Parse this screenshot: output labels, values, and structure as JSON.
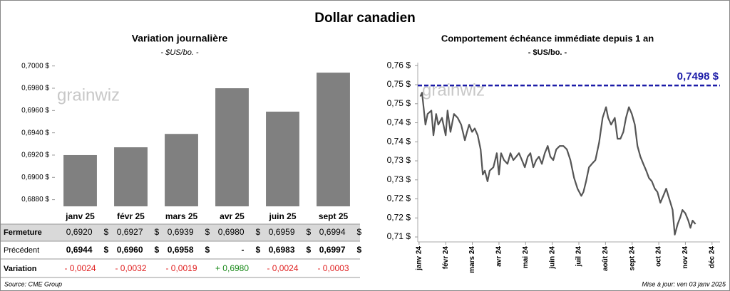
{
  "title": "Dollar canadien",
  "watermark": "grainwiz",
  "source": "Source: CME Group",
  "updated": "Mise à jour: ven 03 janv 2025",
  "chart_data": [
    {
      "type": "bar",
      "title": "Variation  journalière",
      "subtitle": "- $US/bo. -",
      "categories": [
        "janv 25",
        "févr 25",
        "mars 25",
        "avr 25",
        "juin 25",
        "sept 25"
      ],
      "values": [
        0.692,
        0.6927,
        0.6939,
        0.698,
        0.6959,
        0.6994
      ],
      "color": "#808080",
      "ylim": [
        0.6874,
        0.7003
      ],
      "yticks": [
        {
          "value": 0.688,
          "label": "0,6880 $"
        },
        {
          "value": 0.69,
          "label": "0,6900 $"
        },
        {
          "value": 0.692,
          "label": "0,6920 $"
        },
        {
          "value": 0.694,
          "label": "0,6940 $"
        },
        {
          "value": 0.696,
          "label": "0,6960 $"
        },
        {
          "value": 0.698,
          "label": "0,6980 $"
        },
        {
          "value": 0.7,
          "label": "0,7000 $"
        }
      ],
      "grid": false
    },
    {
      "type": "line",
      "title": "Comportement échéance immédiate depuis 1 an",
      "subtitle": "- $US/bo. -",
      "xlim": [
        -0.05,
        11.3
      ],
      "xticks": [
        {
          "value": 0,
          "label": "janv 24"
        },
        {
          "value": 1,
          "label": "févr 24"
        },
        {
          "value": 2,
          "label": "mars 24"
        },
        {
          "value": 3,
          "label": "avr 24"
        },
        {
          "value": 4,
          "label": "mai 24"
        },
        {
          "value": 5,
          "label": "juin 24"
        },
        {
          "value": 6,
          "label": "juil 24"
        },
        {
          "value": 7,
          "label": "août 24"
        },
        {
          "value": 8,
          "label": "sept 24"
        },
        {
          "value": 9,
          "label": "oct 24"
        },
        {
          "value": 10,
          "label": "nov 24"
        },
        {
          "value": 11,
          "label": "déc 24"
        }
      ],
      "ylim": [
        0.7087,
        0.7558
      ],
      "yticks": [
        {
          "value": 0.71,
          "label": "0,71 $"
        },
        {
          "value": 0.715,
          "label": "0,72 $"
        },
        {
          "value": 0.72,
          "label": "0,72 $"
        },
        {
          "value": 0.725,
          "label": "0,73 $"
        },
        {
          "value": 0.73,
          "label": "0,73 $"
        },
        {
          "value": 0.735,
          "label": "0,74 $"
        },
        {
          "value": 0.74,
          "label": "0,74 $"
        },
        {
          "value": 0.745,
          "label": "0,75 $"
        },
        {
          "value": 0.75,
          "label": "0,75 $"
        },
        {
          "value": 0.755,
          "label": "0,76 $"
        }
      ],
      "grid": false,
      "reference": {
        "value": 0.7498,
        "label": "0,7498 $",
        "color": "#1c1ca8"
      },
      "series": [
        {
          "color": "#555555",
          "x": [
            0.05,
            0.11,
            0.24,
            0.32,
            0.46,
            0.54,
            0.64,
            0.72,
            0.86,
            1.0,
            1.07,
            1.18,
            1.31,
            1.45,
            1.58,
            1.72,
            1.8,
            1.88,
            1.99,
            2.09,
            2.2,
            2.31,
            2.39,
            2.47,
            2.57,
            2.65,
            2.79,
            2.92,
            3.0,
            3.08,
            3.19,
            3.32,
            3.43,
            3.54,
            3.65,
            3.75,
            3.86,
            3.97,
            4.08,
            4.18,
            4.29,
            4.4,
            4.5,
            4.61,
            4.72,
            4.83,
            4.93,
            5.04,
            5.15,
            5.28,
            5.42,
            5.55,
            5.68,
            5.82,
            5.95,
            6.09,
            6.17,
            6.27,
            6.38,
            6.49,
            6.62,
            6.76,
            6.89,
            7.02,
            7.1,
            7.21,
            7.35,
            7.45,
            7.56,
            7.67,
            7.77,
            7.88,
            7.99,
            8.1,
            8.2,
            8.31,
            8.42,
            8.53,
            8.63,
            8.74,
            8.85,
            8.95,
            9.06,
            9.17,
            9.28,
            9.36,
            9.44,
            9.52,
            9.6,
            9.71,
            9.81,
            9.89,
            10.0,
            10.11,
            10.19,
            10.27,
            10.38
          ],
          "values": [
            0.7469,
            0.7479,
            0.7395,
            0.7423,
            0.7432,
            0.7367,
            0.7423,
            0.7395,
            0.7413,
            0.7367,
            0.7432,
            0.7376,
            0.7423,
            0.7413,
            0.7395,
            0.7354,
            0.7376,
            0.7395,
            0.7376,
            0.7385,
            0.7367,
            0.733,
            0.7264,
            0.7274,
            0.7246,
            0.7274,
            0.7283,
            0.732,
            0.7264,
            0.732,
            0.7302,
            0.7292,
            0.732,
            0.7302,
            0.7311,
            0.732,
            0.7302,
            0.7283,
            0.7311,
            0.732,
            0.7283,
            0.7302,
            0.7311,
            0.7292,
            0.732,
            0.7339,
            0.7311,
            0.7302,
            0.733,
            0.7339,
            0.7339,
            0.733,
            0.7302,
            0.7255,
            0.7227,
            0.7208,
            0.7218,
            0.7246,
            0.7283,
            0.7292,
            0.7302,
            0.7348,
            0.7413,
            0.7441,
            0.7413,
            0.7395,
            0.7413,
            0.7358,
            0.7358,
            0.7376,
            0.7413,
            0.7441,
            0.7423,
            0.7395,
            0.7339,
            0.7311,
            0.7292,
            0.7274,
            0.7255,
            0.7246,
            0.7227,
            0.7218,
            0.719,
            0.7208,
            0.7227,
            0.7208,
            0.719,
            0.7171,
            0.7106,
            0.7134,
            0.7152,
            0.7171,
            0.7162,
            0.7143,
            0.7124,
            0.7143,
            0.7134
          ]
        }
      ]
    }
  ],
  "table": {
    "unit": "$",
    "positive_color": "#1a8a1a",
    "negative_color": "#e02020",
    "rows": [
      {
        "label": "Fermeture",
        "cells": [
          "0,6920",
          "0,6927",
          "0,6939",
          "0,6980",
          "0,6959",
          "0,6994"
        ],
        "unit": true,
        "shaded": true
      },
      {
        "label": "Précédent",
        "cells": [
          "0,6944",
          "0,6960",
          "0,6958",
          "-",
          "0,6983",
          "0,6997"
        ],
        "unit": true
      },
      {
        "label": "Variation",
        "cells": [
          "- 0,0024",
          "- 0,0032",
          "- 0,0019",
          "+ 0,6980",
          "- 0,0024",
          "- 0,0003"
        ],
        "signed": true
      }
    ]
  }
}
